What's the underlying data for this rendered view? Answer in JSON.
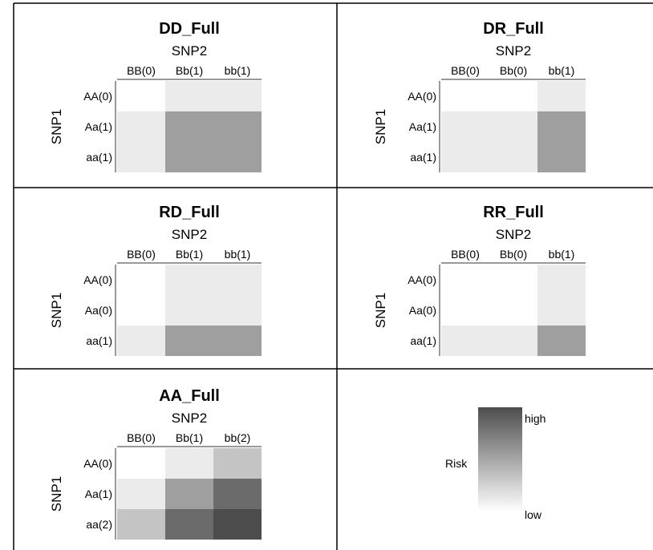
{
  "chart_data": [
    {
      "type": "heatmap",
      "title": "DD_Full",
      "xlabel": "SNP2",
      "ylabel": "SNP1",
      "x_ticks": [
        "BB(0)",
        "Bb(1)",
        "bb(1)"
      ],
      "y_ticks": [
        "AA(0)",
        "Aa(1)",
        "aa(1)"
      ],
      "values": [
        [
          0,
          1,
          1
        ],
        [
          1,
          4,
          4
        ],
        [
          1,
          4,
          4
        ]
      ]
    },
    {
      "type": "heatmap",
      "title": "DR_Full",
      "xlabel": "SNP2",
      "ylabel": "SNP1",
      "x_ticks": [
        "BB(0)",
        "Bb(0)",
        "bb(1)"
      ],
      "y_ticks": [
        "AA(0)",
        "Aa(1)",
        "aa(1)"
      ],
      "values": [
        [
          0,
          0,
          1
        ],
        [
          1,
          1,
          4
        ],
        [
          1,
          1,
          4
        ]
      ]
    },
    {
      "type": "heatmap",
      "title": "RD_Full",
      "xlabel": "SNP2",
      "ylabel": "SNP1",
      "x_ticks": [
        "BB(0)",
        "Bb(1)",
        "bb(1)"
      ],
      "y_ticks": [
        "AA(0)",
        "Aa(0)",
        "aa(1)"
      ],
      "values": [
        [
          0,
          1,
          1
        ],
        [
          0,
          1,
          1
        ],
        [
          1,
          4,
          4
        ]
      ]
    },
    {
      "type": "heatmap",
      "title": "RR_Full",
      "xlabel": "SNP2",
      "ylabel": "SNP1",
      "x_ticks": [
        "BB(0)",
        "Bb(0)",
        "bb(1)"
      ],
      "y_ticks": [
        "AA(0)",
        "Aa(0)",
        "aa(1)"
      ],
      "values": [
        [
          0,
          0,
          1
        ],
        [
          0,
          0,
          1
        ],
        [
          1,
          1,
          4
        ]
      ]
    },
    {
      "type": "heatmap",
      "title": "AA_Full",
      "xlabel": "SNP2",
      "ylabel": "SNP1",
      "x_ticks": [
        "BB(0)",
        "Bb(1)",
        "bb(2)"
      ],
      "y_ticks": [
        "AA(0)",
        "Aa(1)",
        "aa(2)"
      ],
      "values": [
        [
          0,
          1,
          2
        ],
        [
          1,
          4,
          6
        ],
        [
          2,
          6,
          8
        ]
      ]
    }
  ],
  "legend": {
    "title": "Risk",
    "high_label": "high",
    "low_label": "low",
    "color_high": "#4d4d4d",
    "color_low": "#ffffff"
  },
  "colors": {
    "risk_0": "#ffffff",
    "risk_1": "#ebebeb",
    "risk_2": "#c4c4c4",
    "risk_4": "#9f9f9f",
    "risk_6": "#6b6b6b",
    "risk_8": "#4d4d4d"
  }
}
